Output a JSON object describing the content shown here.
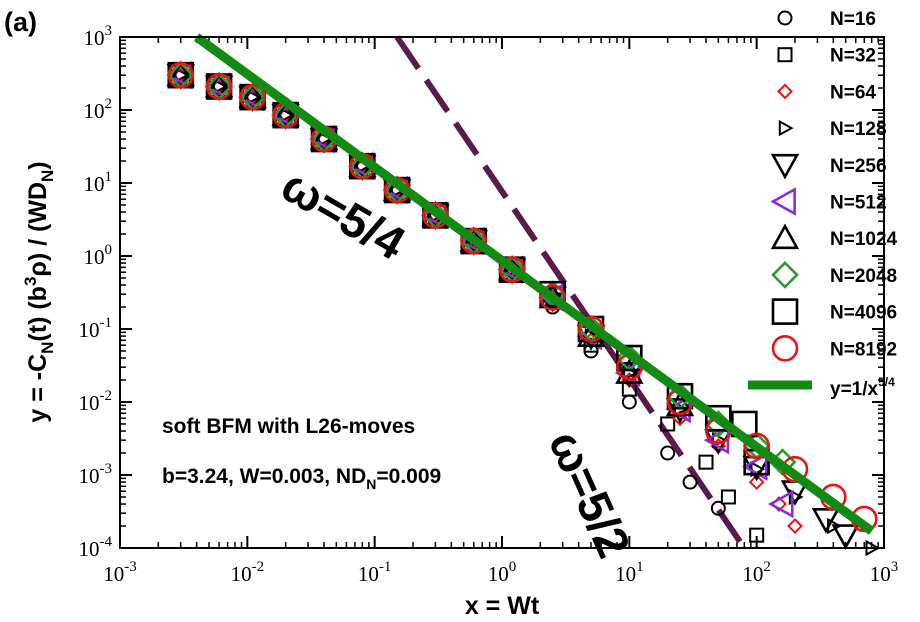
{
  "panel_label": "(a)",
  "colors": {
    "axis": "#000000",
    "fit_line": "#138a13",
    "dashed_line": "#5a1a4a",
    "n8192": "#ee1111",
    "n64": "#ee1111",
    "n512": "#8a2be2",
    "n2048": "#2e9a2e"
  },
  "chart_data": {
    "type": "scatter",
    "x_scale": "log",
    "y_scale": "log",
    "xlim": [
      0.001,
      1000
    ],
    "ylim": [
      0.0001,
      1000
    ],
    "xlabel": "x = Wt",
    "ylabel": {
      "p1": "y = -C",
      "s1": "N",
      "p2": "(t) (b",
      "s2": "3",
      "p3": "ρ) / (WD",
      "s3": "N",
      "p4": ")"
    },
    "x_ticks": [
      {
        "base": "10",
        "exp": "-3"
      },
      {
        "base": "10",
        "exp": "-2"
      },
      {
        "base": "10",
        "exp": "-1"
      },
      {
        "base": "10",
        "exp": "0"
      },
      {
        "base": "10",
        "exp": "1"
      },
      {
        "base": "10",
        "exp": "2"
      },
      {
        "base": "10",
        "exp": "3"
      }
    ],
    "y_ticks": [
      {
        "base": "10",
        "exp": "-4"
      },
      {
        "base": "10",
        "exp": "-3"
      },
      {
        "base": "10",
        "exp": "-2"
      },
      {
        "base": "10",
        "exp": "-1"
      },
      {
        "base": "10",
        "exp": "0"
      },
      {
        "base": "10",
        "exp": "1"
      },
      {
        "base": "10",
        "exp": "2"
      },
      {
        "base": "10",
        "exp": "3"
      }
    ],
    "series": [
      {
        "name": "N=16",
        "marker": "circle",
        "size": "small",
        "color": "#000000",
        "points": [
          [
            0.003,
            300
          ],
          [
            0.006,
            210
          ],
          [
            0.011,
            150
          ],
          [
            0.02,
            80
          ],
          [
            0.04,
            40
          ],
          [
            0.08,
            16
          ],
          [
            0.15,
            8
          ],
          [
            0.3,
            3.5
          ],
          [
            0.6,
            1.5
          ],
          [
            1.2,
            0.6
          ],
          [
            2.5,
            0.2
          ],
          [
            5,
            0.05
          ],
          [
            10,
            0.01
          ],
          [
            20,
            0.002
          ],
          [
            30,
            0.0008
          ],
          [
            50,
            0.00035
          ]
        ]
      },
      {
        "name": "N=32",
        "marker": "square",
        "size": "small",
        "color": "#000000",
        "points": [
          [
            0.003,
            300
          ],
          [
            0.006,
            210
          ],
          [
            0.011,
            150
          ],
          [
            0.02,
            85
          ],
          [
            0.04,
            40
          ],
          [
            0.08,
            17
          ],
          [
            0.15,
            8
          ],
          [
            0.3,
            3.5
          ],
          [
            0.6,
            1.6
          ],
          [
            1.2,
            0.65
          ],
          [
            2.5,
            0.25
          ],
          [
            5,
            0.06
          ],
          [
            10,
            0.015
          ],
          [
            20,
            0.005
          ],
          [
            40,
            0.0015
          ],
          [
            60,
            0.0005
          ],
          [
            100,
            0.00015
          ]
        ]
      },
      {
        "name": "N=64",
        "marker": "diamond",
        "size": "small",
        "color": "#ee1111",
        "points": [
          [
            0.003,
            300
          ],
          [
            0.006,
            210
          ],
          [
            0.011,
            150
          ],
          [
            0.02,
            85
          ],
          [
            0.04,
            40
          ],
          [
            0.08,
            17
          ],
          [
            0.15,
            8
          ],
          [
            0.3,
            3.6
          ],
          [
            0.6,
            1.6
          ],
          [
            1.2,
            0.65
          ],
          [
            2.5,
            0.27
          ],
          [
            5,
            0.07
          ],
          [
            10,
            0.02
          ],
          [
            25,
            0.006
          ],
          [
            50,
            0.0025
          ],
          [
            100,
            0.0008
          ],
          [
            150,
            0.0004
          ],
          [
            200,
            0.0002
          ]
        ]
      },
      {
        "name": "N=128",
        "marker": "triangle-right",
        "size": "small",
        "color": "#000000",
        "points": [
          [
            0.003,
            300
          ],
          [
            0.006,
            210
          ],
          [
            0.011,
            150
          ],
          [
            0.02,
            85
          ],
          [
            0.04,
            40
          ],
          [
            0.08,
            17
          ],
          [
            0.15,
            8
          ],
          [
            0.3,
            3.6
          ],
          [
            0.6,
            1.6
          ],
          [
            1.2,
            0.65
          ],
          [
            2.5,
            0.27
          ],
          [
            5,
            0.08
          ],
          [
            10,
            0.025
          ],
          [
            25,
            0.008
          ],
          [
            50,
            0.003
          ],
          [
            100,
            0.0012
          ],
          [
            200,
            0.0005
          ],
          [
            400,
            0.0002
          ],
          [
            800,
            0.0001
          ]
        ]
      },
      {
        "name": "N=256",
        "marker": "triangle-down",
        "size": "large",
        "color": "#000000",
        "points": [
          [
            0.003,
            300
          ],
          [
            0.006,
            210
          ],
          [
            0.011,
            150
          ],
          [
            0.02,
            85
          ],
          [
            0.04,
            40
          ],
          [
            0.08,
            17
          ],
          [
            0.15,
            8
          ],
          [
            0.3,
            3.6
          ],
          [
            0.6,
            1.6
          ],
          [
            1.2,
            0.65
          ],
          [
            2.5,
            0.27
          ],
          [
            5,
            0.08
          ],
          [
            10,
            0.025
          ],
          [
            25,
            0.008
          ],
          [
            50,
            0.003
          ],
          [
            100,
            0.0013
          ],
          [
            200,
            0.0006
          ],
          [
            350,
            0.00025
          ],
          [
            500,
            0.00015
          ]
        ]
      },
      {
        "name": "N=512",
        "marker": "triangle-left",
        "size": "large",
        "color": "#8a2be2",
        "points": [
          [
            0.003,
            300
          ],
          [
            0.006,
            210
          ],
          [
            0.011,
            150
          ],
          [
            0.02,
            85
          ],
          [
            0.04,
            40
          ],
          [
            0.08,
            17
          ],
          [
            0.15,
            8
          ],
          [
            0.3,
            3.6
          ],
          [
            0.6,
            1.6
          ],
          [
            1.2,
            0.65
          ],
          [
            2.5,
            0.27
          ],
          [
            5,
            0.08
          ],
          [
            10,
            0.025
          ],
          [
            25,
            0.008
          ],
          [
            50,
            0.003
          ],
          [
            100,
            0.0013
          ],
          [
            160,
            0.0004
          ]
        ]
      },
      {
        "name": "N=1024",
        "marker": "triangle-up",
        "size": "large",
        "color": "#000000",
        "points": [
          [
            0.003,
            300
          ],
          [
            0.006,
            210
          ],
          [
            0.011,
            150
          ],
          [
            0.02,
            85
          ],
          [
            0.04,
            40
          ],
          [
            0.08,
            17
          ],
          [
            0.15,
            8
          ],
          [
            0.3,
            3.6
          ],
          [
            0.6,
            1.6
          ],
          [
            1.2,
            0.65
          ],
          [
            2.5,
            0.27
          ],
          [
            5,
            0.08
          ],
          [
            10,
            0.025
          ],
          [
            25,
            0.009
          ]
        ]
      },
      {
        "name": "N=2048",
        "marker": "diamond",
        "size": "large",
        "color": "#2e9a2e",
        "points": [
          [
            0.003,
            300
          ],
          [
            0.006,
            210
          ],
          [
            0.011,
            150
          ],
          [
            0.02,
            85
          ],
          [
            0.04,
            40
          ],
          [
            0.08,
            17
          ],
          [
            0.15,
            8
          ],
          [
            0.3,
            3.6
          ],
          [
            0.6,
            1.6
          ],
          [
            1.2,
            0.65
          ],
          [
            2.5,
            0.3
          ],
          [
            5,
            0.1
          ],
          [
            10,
            0.04
          ],
          [
            25,
            0.012
          ],
          [
            50,
            0.005
          ],
          [
            100,
            0.0025
          ],
          [
            160,
            0.0015
          ]
        ]
      },
      {
        "name": "N=4096",
        "marker": "square",
        "size": "large",
        "color": "#000000",
        "points": [
          [
            0.003,
            300
          ],
          [
            0.006,
            210
          ],
          [
            0.011,
            150
          ],
          [
            0.02,
            85
          ],
          [
            0.04,
            40
          ],
          [
            0.08,
            17
          ],
          [
            0.15,
            8
          ],
          [
            0.3,
            3.6
          ],
          [
            0.6,
            1.6
          ],
          [
            1.2,
            0.65
          ],
          [
            2.5,
            0.3
          ],
          [
            5,
            0.1
          ],
          [
            10,
            0.04
          ],
          [
            25,
            0.012
          ],
          [
            50,
            0.006
          ],
          [
            80,
            0.005
          ],
          [
            100,
            0.0015
          ]
        ]
      },
      {
        "name": "N=8192",
        "marker": "circle",
        "size": "large",
        "color": "#ee1111",
        "points": [
          [
            0.003,
            300
          ],
          [
            0.006,
            210
          ],
          [
            0.011,
            150
          ],
          [
            0.02,
            85
          ],
          [
            0.04,
            40
          ],
          [
            0.08,
            17
          ],
          [
            0.15,
            8
          ],
          [
            0.3,
            3.6
          ],
          [
            0.6,
            1.6
          ],
          [
            1.2,
            0.65
          ],
          [
            2.5,
            0.27
          ],
          [
            5,
            0.1
          ],
          [
            10,
            0.03
          ],
          [
            25,
            0.01
          ],
          [
            50,
            0.004
          ],
          [
            100,
            0.0025
          ],
          [
            200,
            0.0012
          ],
          [
            400,
            0.0005
          ],
          [
            700,
            0.00025
          ]
        ]
      }
    ],
    "lines": [
      {
        "name": "y=1/x^5/4",
        "label_base": "y=1/x",
        "label_exp": "5/4",
        "style": "solid",
        "points": [
          [
            0.004,
            1000
          ],
          [
            800,
            0.00017
          ]
        ]
      },
      {
        "name": "ω=5/2",
        "style": "dashed",
        "in_legend": false,
        "points": [
          [
            0.15,
            1000
          ],
          [
            80,
            0.0001
          ]
        ]
      }
    ],
    "annotations": {
      "omega_fit": "ω=5/4",
      "omega_dashed": "ω=5/2",
      "note_line1": "soft BFM with L26-moves",
      "note_line2_pre": "b=3.24, W=0.003, ND",
      "note_line2_sub": "N",
      "note_line2_post": "=0.009"
    }
  }
}
